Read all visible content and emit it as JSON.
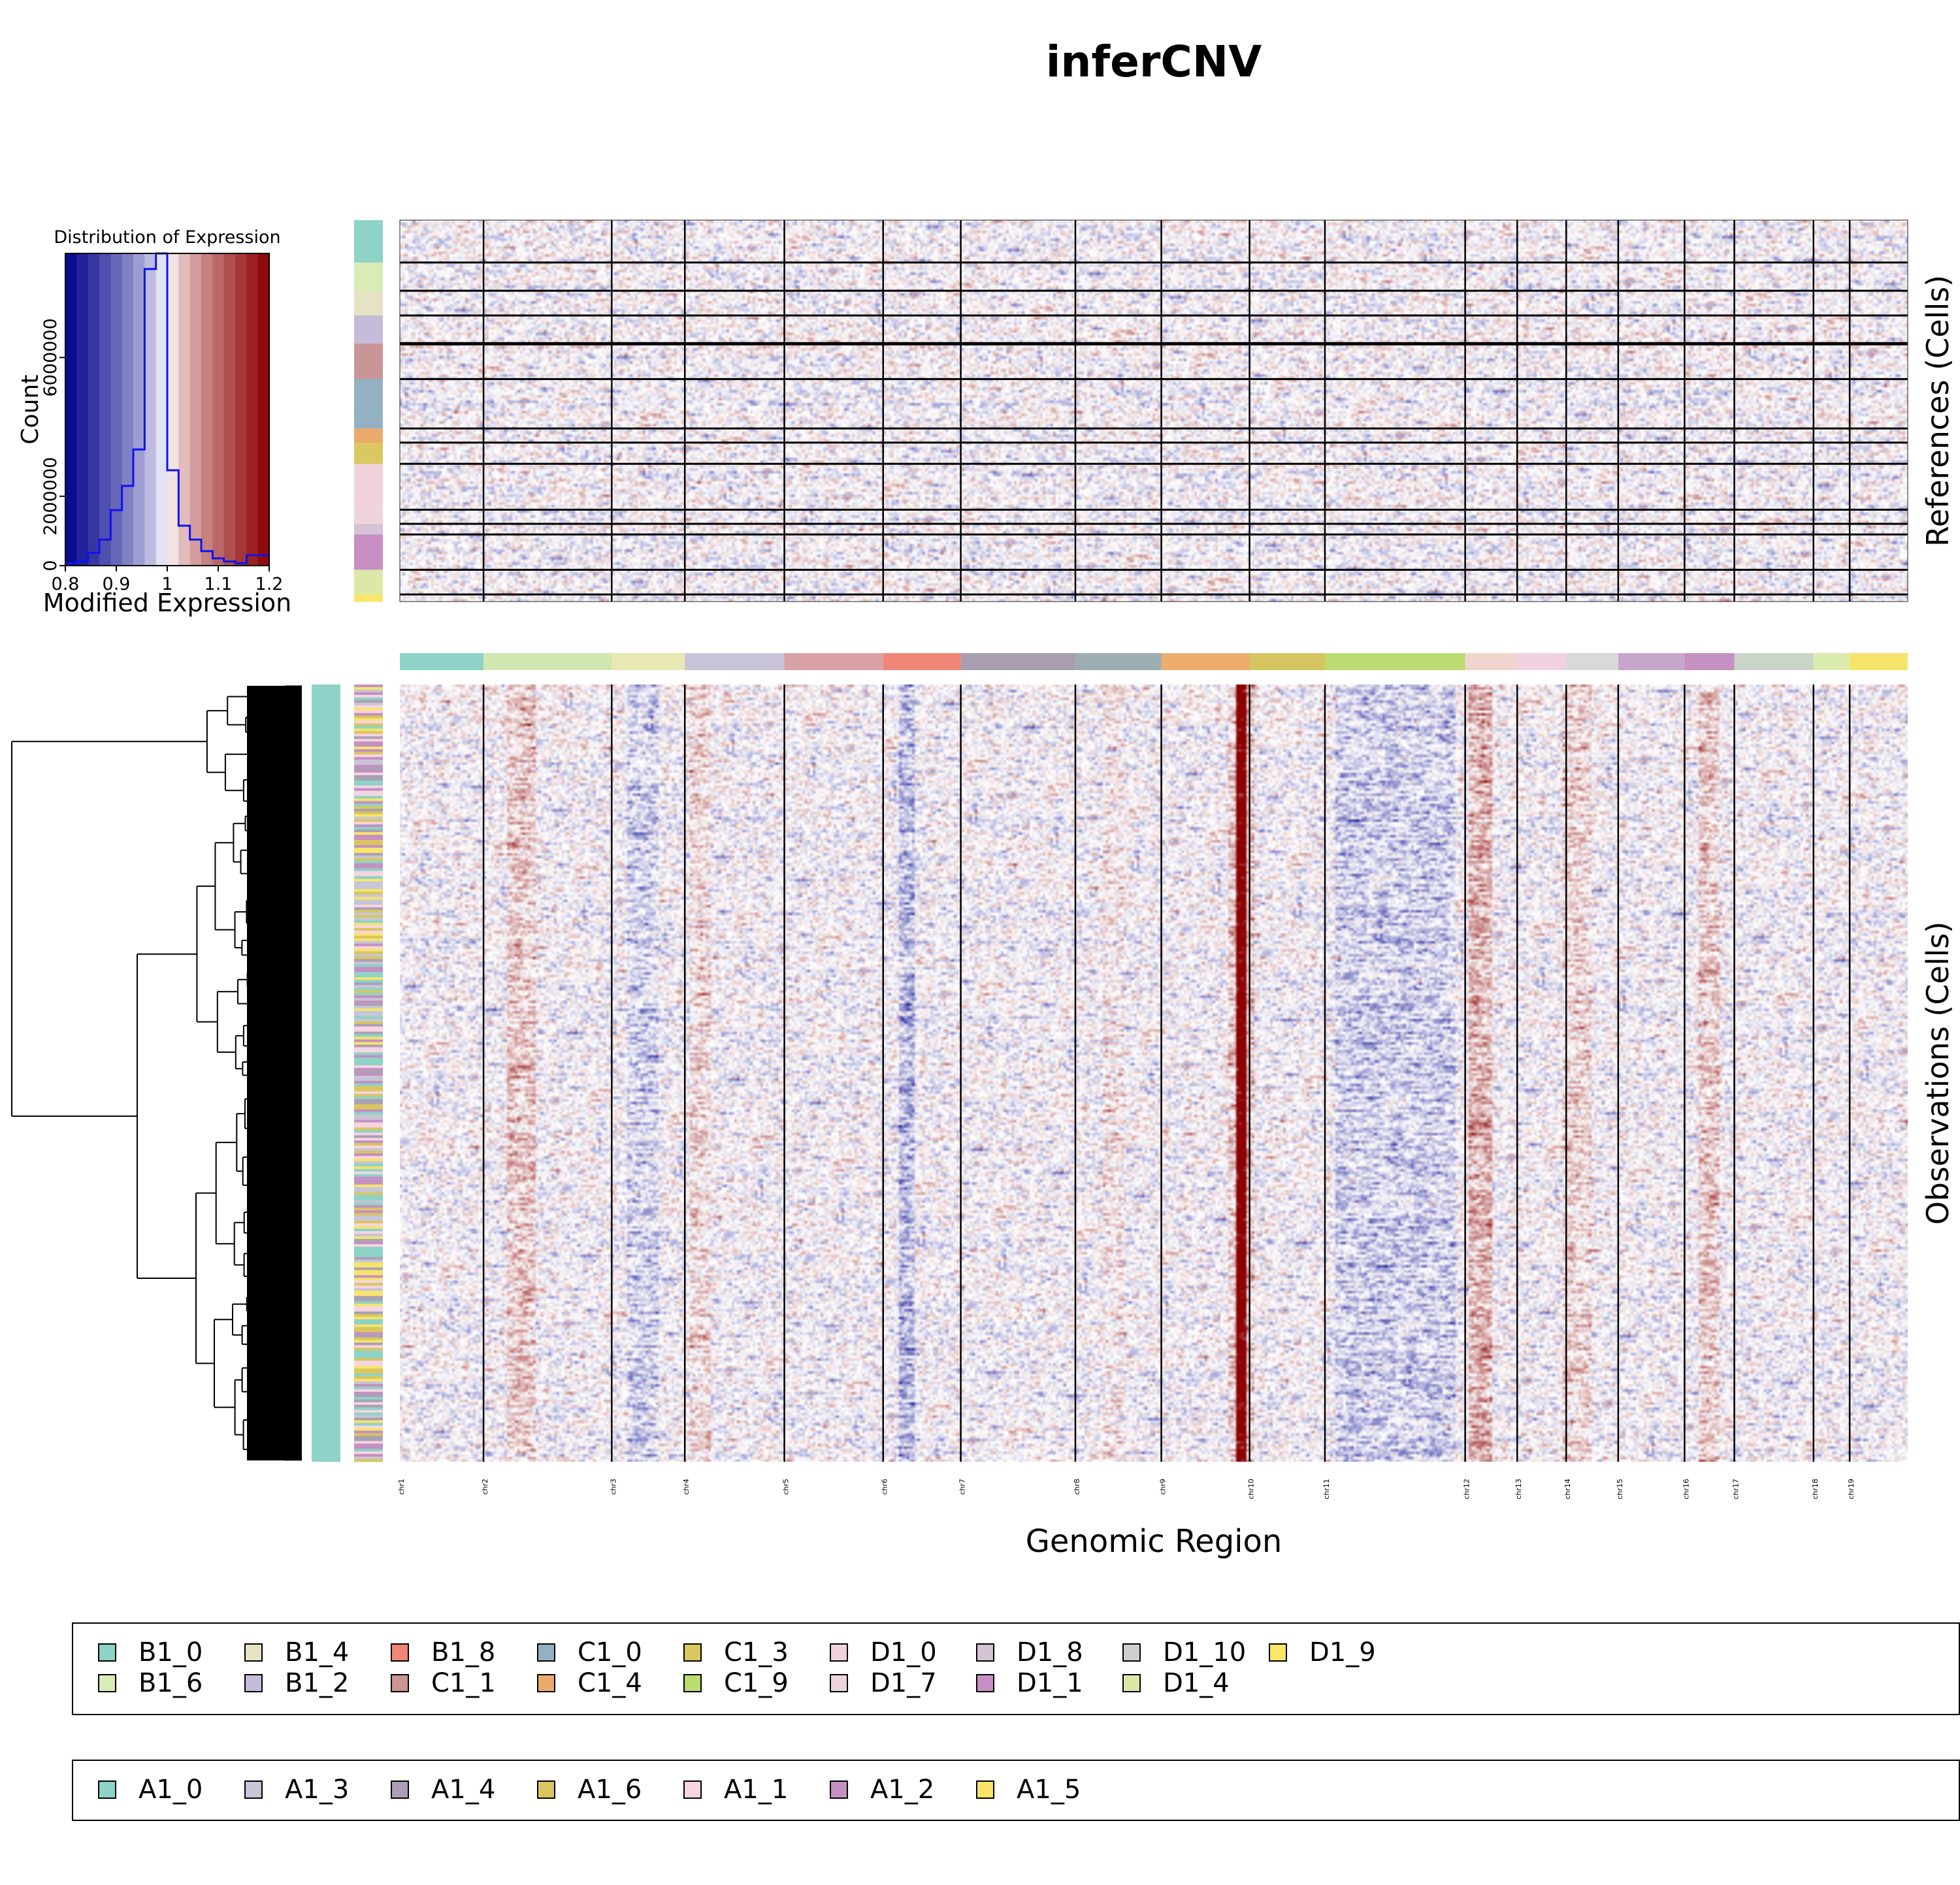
{
  "chart_data": {
    "type": "heatmap",
    "title": "inferCNV",
    "xlabel": "Genomic Region",
    "references_label": "References (Cells)",
    "observations_label": "Observations (Cells)",
    "chromosomes": [
      "chr1",
      "chr2",
      "chr3",
      "chr4",
      "chr5",
      "chr6",
      "chr7",
      "chr8",
      "chr9",
      "chr10",
      "chr11",
      "chr12",
      "chr13",
      "chr14",
      "chr15",
      "chr16",
      "chr17",
      "chr18",
      "chr19"
    ],
    "chromosome_bounds": [
      0,
      0.0555,
      0.1405,
      0.189,
      0.255,
      0.3205,
      0.372,
      0.448,
      0.505,
      0.5635,
      0.6135,
      0.7065,
      0.741,
      0.7735,
      0.808,
      0.852,
      0.885,
      0.9375,
      0.9615,
      1
    ],
    "chromosome_colors": [
      "#8dd3c7",
      "#cfe7b0",
      "#e8e8b4",
      "#c8c3d6",
      "#d8a1a6",
      "#ef8678",
      "#a89eaf",
      "#9daeb2",
      "#edad6f",
      "#d4c560",
      "#bbdc70",
      "#efd5cd",
      "#f2d1e3",
      "#d9d9d9",
      "#c6a7cb",
      "#c590c2",
      "#c8d5c7",
      "#dbebad",
      "#f7e46a"
    ],
    "reference_groups": [
      {
        "name": "B1_0",
        "color": "#8dd3c7",
        "rows": 12
      },
      {
        "name": "B1_6",
        "color": "#d9ebb7",
        "rows": 8
      },
      {
        "name": "B1_4",
        "color": "#e5e3c2",
        "rows": 7
      },
      {
        "name": "B1_2",
        "color": "#c5bbdb",
        "rows": 8
      },
      {
        "name": "C1_1",
        "color": "#c99596",
        "rows": 10
      },
      {
        "name": "C1_0",
        "color": "#92b2c4",
        "rows": 14
      },
      {
        "name": "C1_4",
        "color": "#ebab6b",
        "rows": 4
      },
      {
        "name": "C1_3",
        "color": "#dbc861",
        "rows": 6
      },
      {
        "name": "D1_0",
        "color": "#f2d3db",
        "rows": 13
      },
      {
        "name": "D1_7",
        "color": "#eed5dd",
        "rows": 4
      },
      {
        "name": "D1_8",
        "color": "#d6c3d5",
        "rows": 3
      },
      {
        "name": "D1_1",
        "color": "#c88fc4",
        "rows": 10
      },
      {
        "name": "D1_4",
        "color": "#dce8a8",
        "rows": 7
      },
      {
        "name": "D1_9",
        "color": "#fbe66a",
        "rows": 2
      }
    ],
    "colorbar": {
      "title": "Distribution of Expression",
      "xlabel": "Modified Expression",
      "ylabel": "Count",
      "x_ticks": [
        "0.8",
        "0.9",
        "1",
        "1.1",
        "1.2"
      ],
      "y_ticks": [
        "0",
        "2000000",
        "6000000"
      ],
      "xlim": [
        0.8,
        1.2
      ],
      "ylim": [
        0,
        9000000
      ],
      "bins": [
        0.8,
        0.8222,
        0.8444,
        0.8667,
        0.8889,
        0.9111,
        0.9333,
        0.9556,
        0.9778,
        1.0,
        1.0222,
        1.0444,
        1.0667,
        1.0889,
        1.1111,
        1.1333,
        1.1556,
        1.1778,
        1.2
      ],
      "counts": [
        70000,
        140000,
        370000,
        750000,
        1600000,
        2300000,
        3350000,
        8550000,
        9000000,
        2750000,
        1150000,
        750000,
        420000,
        210000,
        120000,
        70000,
        300000,
        300000
      ]
    },
    "legend_references": [
      {
        "label": "B1_0",
        "color": "#8dd3c7"
      },
      {
        "label": "B1_6",
        "color": "#d9ebb7"
      },
      {
        "label": "B1_4",
        "color": "#e5e3c2"
      },
      {
        "label": "B1_2",
        "color": "#c5bbdb"
      },
      {
        "label": "B1_8",
        "color": "#ef8678"
      },
      {
        "label": "C1_1",
        "color": "#c99596"
      },
      {
        "label": "C1_0",
        "color": "#92b2c4"
      },
      {
        "label": "C1_4",
        "color": "#ebab6b"
      },
      {
        "label": "C1_3",
        "color": "#dbc861"
      },
      {
        "label": "C1_9",
        "color": "#bbdc70"
      },
      {
        "label": "D1_0",
        "color": "#f2d3db"
      },
      {
        "label": "D1_7",
        "color": "#eed5dd"
      },
      {
        "label": "D1_8",
        "color": "#d6c3d5"
      },
      {
        "label": "D1_1",
        "color": "#c88fc4"
      },
      {
        "label": "D1_10",
        "color": "#cfcfcf"
      },
      {
        "label": "D1_4",
        "color": "#dce8a8"
      },
      {
        "label": "D1_9",
        "color": "#fbe66a"
      }
    ],
    "legend_observations": [
      {
        "label": "A1_0",
        "color": "#8dd3c7"
      },
      {
        "label": "A1_3",
        "color": "#c7c5d6"
      },
      {
        "label": "A1_4",
        "color": "#aaa0b4"
      },
      {
        "label": "A1_6",
        "color": "#d9c65f"
      },
      {
        "label": "A1_1",
        "color": "#f6d4e2"
      },
      {
        "label": "A1_2",
        "color": "#c590c2"
      },
      {
        "label": "A1_5",
        "color": "#f7e46a"
      }
    ],
    "observation_group_colors": [
      "#8dd3c7",
      "#c7c5d6",
      "#aaa0b4",
      "#d9c65f",
      "#f6d4e2",
      "#c590c2",
      "#f7e46a"
    ],
    "heat_colors": {
      "low": "#00008b",
      "mid": "#ffffff",
      "high": "#8b0000"
    }
  }
}
